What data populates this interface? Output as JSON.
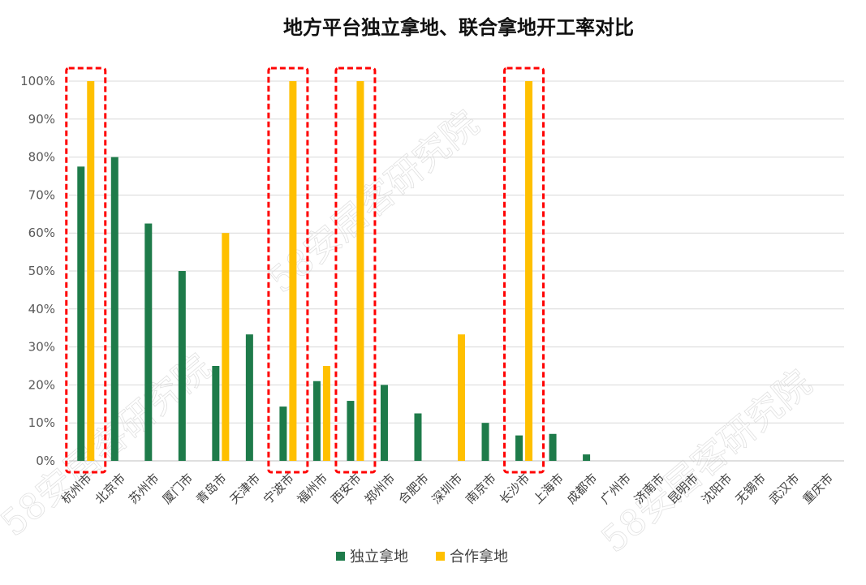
{
  "chart_data": {
    "type": "bar",
    "title": "地方平台独立拿地、联合拿地开工率对比",
    "categories": [
      "杭州市",
      "北京市",
      "苏州市",
      "厦门市",
      "青岛市",
      "天津市",
      "宁波市",
      "福州市",
      "西安市",
      "郑州市",
      "合肥市",
      "深圳市",
      "南京市",
      "长沙市",
      "上海市",
      "成都市",
      "广州市",
      "济南市",
      "昆明市",
      "沈阳市",
      "无锡市",
      "武汉市",
      "重庆市"
    ],
    "series": [
      {
        "name": "独立拿地",
        "color": "#1e7b4a",
        "values": [
          0.775,
          0.8,
          0.625,
          0.5,
          0.25,
          0.333,
          0.143,
          0.21,
          0.158,
          0.2,
          0.125,
          0,
          0.1,
          0.067,
          0.071,
          0.017,
          0,
          0,
          0,
          0,
          0,
          0,
          0
        ]
      },
      {
        "name": "合作拿地",
        "color": "#ffc000",
        "values": [
          1.0,
          0,
          0,
          0,
          0.6,
          0,
          1.0,
          0.25,
          1.0,
          0,
          0,
          0.333,
          0,
          1.0,
          0,
          0,
          0,
          0,
          0,
          0,
          0,
          0,
          0
        ]
      }
    ],
    "y_ticks": [
      "0%",
      "10%",
      "20%",
      "30%",
      "40%",
      "50%",
      "60%",
      "70%",
      "80%",
      "90%",
      "100%"
    ],
    "ylim": [
      0,
      1
    ],
    "grid": true,
    "legend_position": "bottom",
    "highlighted_categories": [
      "杭州市",
      "宁波市",
      "西安市",
      "长沙市"
    ],
    "highlight_color": "#ff0000"
  },
  "watermark": "58安居客研究院"
}
